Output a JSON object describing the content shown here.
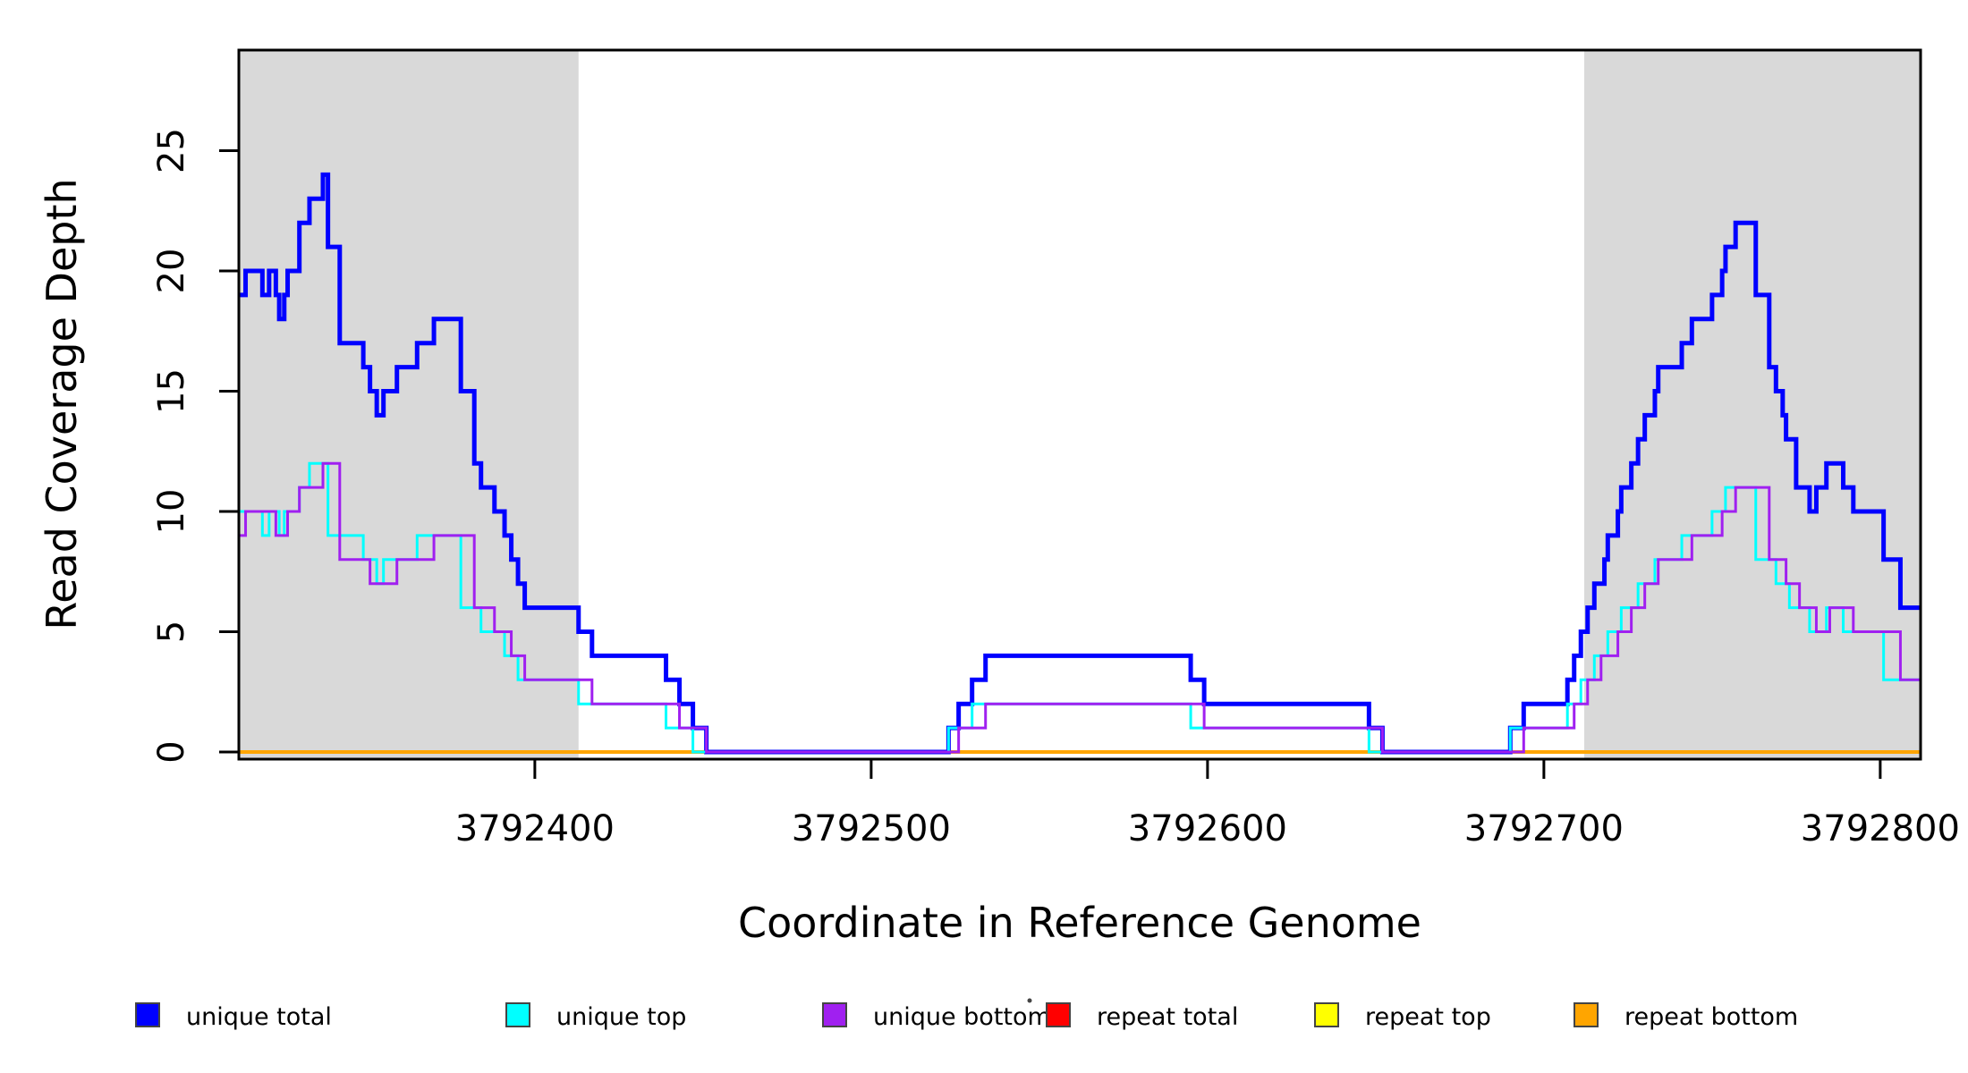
{
  "chart_data": {
    "type": "line",
    "step_mode": "after",
    "title": "",
    "xlabel": "Coordinate in Reference Genome",
    "ylabel": "Read Coverage Depth",
    "xlim": [
      3792312,
      3792812
    ],
    "ylim": [
      0,
      29
    ],
    "x_ticks": [
      3792400,
      3792500,
      3792600,
      3792700,
      3792800
    ],
    "x_tick_labels": [
      "3792400",
      "3792500",
      "3792600",
      "3792700",
      "3792800"
    ],
    "y_ticks": [
      0,
      5,
      10,
      15,
      20,
      25
    ],
    "y_tick_labels": [
      "0",
      "5",
      "10",
      "15",
      "20",
      "25"
    ],
    "grid": false,
    "legend_position": "bottom",
    "highlight_color": "#D9D9D9",
    "highlight_regions": [
      [
        3792312,
        3792413
      ],
      [
        3792712,
        3792812
      ]
    ],
    "draw_order": [
      "repeat total",
      "repeat top",
      "repeat bottom",
      "unique total",
      "unique top",
      "unique bottom"
    ],
    "series": [
      {
        "name": "unique total",
        "color": "#0000FF",
        "width": 5,
        "steps": [
          [
            3792312,
            19
          ],
          [
            3792314,
            20
          ],
          [
            3792319,
            19
          ],
          [
            3792321,
            20
          ],
          [
            3792323,
            19
          ],
          [
            3792324,
            18
          ],
          [
            3792325.5,
            19
          ],
          [
            3792326.5,
            20
          ],
          [
            3792330,
            22
          ],
          [
            3792333,
            23
          ],
          [
            3792337,
            24
          ],
          [
            3792338.5,
            21
          ],
          [
            3792342,
            17
          ],
          [
            3792349,
            16
          ],
          [
            3792351,
            15
          ],
          [
            3792353,
            14
          ],
          [
            3792355,
            15
          ],
          [
            3792359,
            16
          ],
          [
            3792365,
            17
          ],
          [
            3792370,
            18
          ],
          [
            3792378,
            15
          ],
          [
            3792382,
            12
          ],
          [
            3792384,
            11
          ],
          [
            3792388,
            10
          ],
          [
            3792391,
            9
          ],
          [
            3792393,
            8
          ],
          [
            3792395,
            7
          ],
          [
            3792397,
            6
          ],
          [
            3792413,
            5
          ],
          [
            3792417,
            4
          ],
          [
            3792439,
            3
          ],
          [
            3792443,
            2
          ],
          [
            3792447,
            1
          ],
          [
            3792451,
            0
          ],
          [
            3792523,
            1
          ],
          [
            3792526,
            2
          ],
          [
            3792530,
            3
          ],
          [
            3792534,
            4
          ],
          [
            3792595,
            3
          ],
          [
            3792599,
            2
          ],
          [
            3792648,
            1
          ],
          [
            3792652,
            0
          ],
          [
            3792690,
            1
          ],
          [
            3792694,
            2
          ],
          [
            3792707,
            3
          ],
          [
            3792709,
            4
          ],
          [
            3792711,
            5
          ],
          [
            3792713,
            6
          ],
          [
            3792715,
            7
          ],
          [
            3792718,
            8
          ],
          [
            3792719,
            9
          ],
          [
            3792722,
            10
          ],
          [
            3792723,
            11
          ],
          [
            3792726,
            12
          ],
          [
            3792728,
            13
          ],
          [
            3792730,
            14
          ],
          [
            3792733,
            15
          ],
          [
            3792734,
            16
          ],
          [
            3792741,
            17
          ],
          [
            3792744,
            18
          ],
          [
            3792750,
            19
          ],
          [
            3792753,
            20
          ],
          [
            3792754,
            21
          ],
          [
            3792757,
            22
          ],
          [
            3792763,
            19
          ],
          [
            3792767,
            16
          ],
          [
            3792769,
            15
          ],
          [
            3792771,
            14
          ],
          [
            3792772,
            13
          ],
          [
            3792775,
            11
          ],
          [
            3792779,
            10
          ],
          [
            3792781,
            11
          ],
          [
            3792784,
            12
          ],
          [
            3792789,
            11
          ],
          [
            3792792,
            10
          ],
          [
            3792801,
            8
          ],
          [
            3792806,
            6
          ]
        ]
      },
      {
        "name": "unique top",
        "color": "#00FFFF",
        "width": 3,
        "steps": [
          [
            3792312,
            10
          ],
          [
            3792319,
            9
          ],
          [
            3792321,
            10
          ],
          [
            3792324,
            9
          ],
          [
            3792325.5,
            10
          ],
          [
            3792330,
            11
          ],
          [
            3792333,
            12
          ],
          [
            3792338.5,
            9
          ],
          [
            3792349,
            8
          ],
          [
            3792353,
            7
          ],
          [
            3792355,
            8
          ],
          [
            3792365,
            9
          ],
          [
            3792378,
            6
          ],
          [
            3792384,
            5
          ],
          [
            3792391,
            4
          ],
          [
            3792395,
            3
          ],
          [
            3792413,
            2
          ],
          [
            3792439,
            1
          ],
          [
            3792447,
            0
          ],
          [
            3792523,
            1
          ],
          [
            3792530,
            2
          ],
          [
            3792595,
            1
          ],
          [
            3792648,
            0
          ],
          [
            3792690,
            1
          ],
          [
            3792707,
            2
          ],
          [
            3792711,
            3
          ],
          [
            3792715,
            4
          ],
          [
            3792719,
            5
          ],
          [
            3792723,
            6
          ],
          [
            3792728,
            7
          ],
          [
            3792733,
            8
          ],
          [
            3792741,
            9
          ],
          [
            3792750,
            10
          ],
          [
            3792754,
            11
          ],
          [
            3792763,
            8
          ],
          [
            3792769,
            7
          ],
          [
            3792773,
            6
          ],
          [
            3792779,
            5
          ],
          [
            3792784,
            6
          ],
          [
            3792789,
            5
          ],
          [
            3792801,
            3
          ]
        ]
      },
      {
        "name": "unique bottom",
        "color": "#A020F0",
        "width": 3,
        "steps": [
          [
            3792312,
            9
          ],
          [
            3792314,
            10
          ],
          [
            3792323,
            9
          ],
          [
            3792326.5,
            10
          ],
          [
            3792330,
            11
          ],
          [
            3792337,
            12
          ],
          [
            3792342,
            8
          ],
          [
            3792351,
            7
          ],
          [
            3792359,
            8
          ],
          [
            3792370,
            9
          ],
          [
            3792382,
            6
          ],
          [
            3792388,
            5
          ],
          [
            3792393,
            4
          ],
          [
            3792397,
            3
          ],
          [
            3792417,
            2
          ],
          [
            3792443,
            1
          ],
          [
            3792451,
            0
          ],
          [
            3792526,
            1
          ],
          [
            3792534,
            2
          ],
          [
            3792599,
            1
          ],
          [
            3792652,
            0
          ],
          [
            3792694,
            1
          ],
          [
            3792709,
            2
          ],
          [
            3792713,
            3
          ],
          [
            3792717,
            4
          ],
          [
            3792722,
            5
          ],
          [
            3792726,
            6
          ],
          [
            3792730,
            7
          ],
          [
            3792734,
            8
          ],
          [
            3792744,
            9
          ],
          [
            3792753,
            10
          ],
          [
            3792757,
            11
          ],
          [
            3792767,
            8
          ],
          [
            3792772,
            7
          ],
          [
            3792776,
            6
          ],
          [
            3792781,
            5
          ],
          [
            3792785,
            6
          ],
          [
            3792792,
            5
          ],
          [
            3792806,
            3
          ]
        ]
      },
      {
        "name": "repeat total",
        "color": "#FF0000",
        "width": 3,
        "steps": [
          [
            3792312,
            0
          ]
        ]
      },
      {
        "name": "repeat top",
        "color": "#FFFF00",
        "width": 3,
        "steps": [
          [
            3792312,
            0
          ]
        ]
      },
      {
        "name": "repeat bottom",
        "color": "#FFA500",
        "width": 4,
        "steps": [
          [
            3792312,
            0
          ]
        ]
      }
    ]
  },
  "legend": {
    "items": [
      {
        "label": "unique total",
        "color": "#0000FF"
      },
      {
        "label": "unique top",
        "color": "#00FFFF"
      },
      {
        "label": "unique bottom",
        "color": "#A020F0"
      },
      {
        "label": "repeat total",
        "color": "#FF0000"
      },
      {
        "label": "repeat top",
        "color": "#FFFF00"
      },
      {
        "label": "repeat bottom",
        "color": "#FFA500"
      }
    ]
  }
}
